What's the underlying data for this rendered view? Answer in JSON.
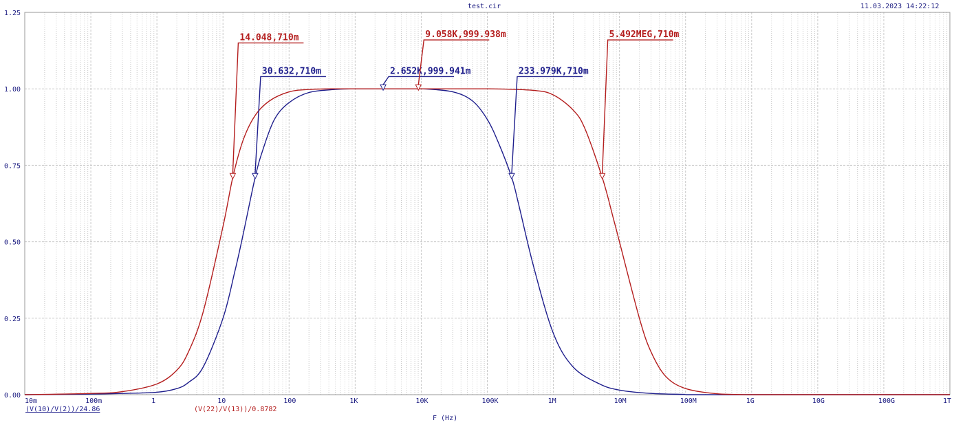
{
  "header": {
    "title": "test.cir",
    "timestamp": "11.03.2023 14:22:12"
  },
  "legend": {
    "series1": "(V(10)/V(2))/24.86",
    "series2": "(V(22)/V(13))/0.8782"
  },
  "colors": {
    "series1": "#1e1e8c",
    "series2": "#b41e1e",
    "axis_text": "#1a1a80",
    "grid": "#c8c8c8"
  },
  "chart_data": {
    "type": "line",
    "title": "test.cir",
    "xlabel": "F (Hz)",
    "ylabel": "",
    "x_scale": "log",
    "xlim": [
      0.01,
      1000000000000
    ],
    "ylim": [
      0,
      1.25
    ],
    "grid": true,
    "x_ticks": [
      "10m",
      "100m",
      "1",
      "10",
      "100",
      "1K",
      "10K",
      "100K",
      "1M",
      "10M",
      "100M",
      "1G",
      "10G",
      "100G",
      "1T"
    ],
    "y_ticks": [
      "0.00",
      "0.25",
      "0.50",
      "0.75",
      "1.00",
      "1.25"
    ],
    "series": [
      {
        "name": "(V(10)/V(2))/24.86",
        "color": "#1e1e8c",
        "x": [
          0.01,
          0.1,
          0.3,
          1,
          2,
          3,
          5,
          10,
          15,
          20,
          30.632,
          40,
          60,
          100,
          200,
          500,
          1000,
          2652,
          10000,
          30000,
          60000,
          100000,
          150000,
          233979,
          300000,
          500000,
          1000000,
          2000000,
          5000000,
          10000000,
          30000000,
          100000000
        ],
        "y": [
          0,
          0.002,
          0.004,
          0.008,
          0.02,
          0.04,
          0.09,
          0.25,
          0.4,
          0.52,
          0.71,
          0.8,
          0.9,
          0.955,
          0.988,
          0.998,
          1.0,
          1.0,
          1.0,
          0.99,
          0.96,
          0.9,
          0.82,
          0.71,
          0.62,
          0.42,
          0.2,
          0.09,
          0.035,
          0.015,
          0.004,
          0.001
        ]
      },
      {
        "name": "(V(22)/V(13))/0.8782",
        "color": "#b41e1e",
        "x": [
          0.01,
          0.1,
          0.3,
          1,
          2,
          3,
          5,
          10,
          14.048,
          20,
          30,
          50,
          100,
          200,
          500,
          1000,
          9058,
          100000,
          500000,
          1000000,
          2000000,
          3000000,
          5492000,
          8000000,
          10000000,
          20000000,
          30000000,
          50000000,
          100000000,
          300000000,
          1000000000
        ],
        "y": [
          0,
          0.004,
          0.01,
          0.035,
          0.08,
          0.14,
          0.27,
          0.55,
          0.71,
          0.83,
          0.91,
          0.96,
          0.99,
          0.998,
          1.0,
          1.0,
          1.0,
          1.0,
          0.995,
          0.98,
          0.93,
          0.87,
          0.71,
          0.58,
          0.5,
          0.25,
          0.14,
          0.06,
          0.02,
          0.003,
          0
        ]
      }
    ],
    "annotations": [
      {
        "text": "14.048,710m",
        "x": 14.048,
        "y": 0.71,
        "series": 1,
        "label_at": [
          14.048,
          1.15
        ]
      },
      {
        "text": "30.632,710m",
        "x": 30.632,
        "y": 0.71,
        "series": 0,
        "label_at": [
          30.632,
          1.04
        ]
      },
      {
        "text": "2.652K,999.941m",
        "x": 2652,
        "y": 0.9999,
        "series": 0,
        "label_at": [
          2652,
          1.04
        ]
      },
      {
        "text": "9.058K,999.938m",
        "x": 9058,
        "y": 0.9999,
        "series": 1,
        "label_at": [
          9058,
          1.16
        ]
      },
      {
        "text": "233.979K,710m",
        "x": 233979,
        "y": 0.71,
        "series": 0,
        "label_at": [
          233979,
          1.04
        ]
      },
      {
        "text": "5.492MEG,710m",
        "x": 5492000,
        "y": 0.71,
        "series": 1,
        "label_at": [
          5492000,
          1.16
        ]
      }
    ]
  }
}
